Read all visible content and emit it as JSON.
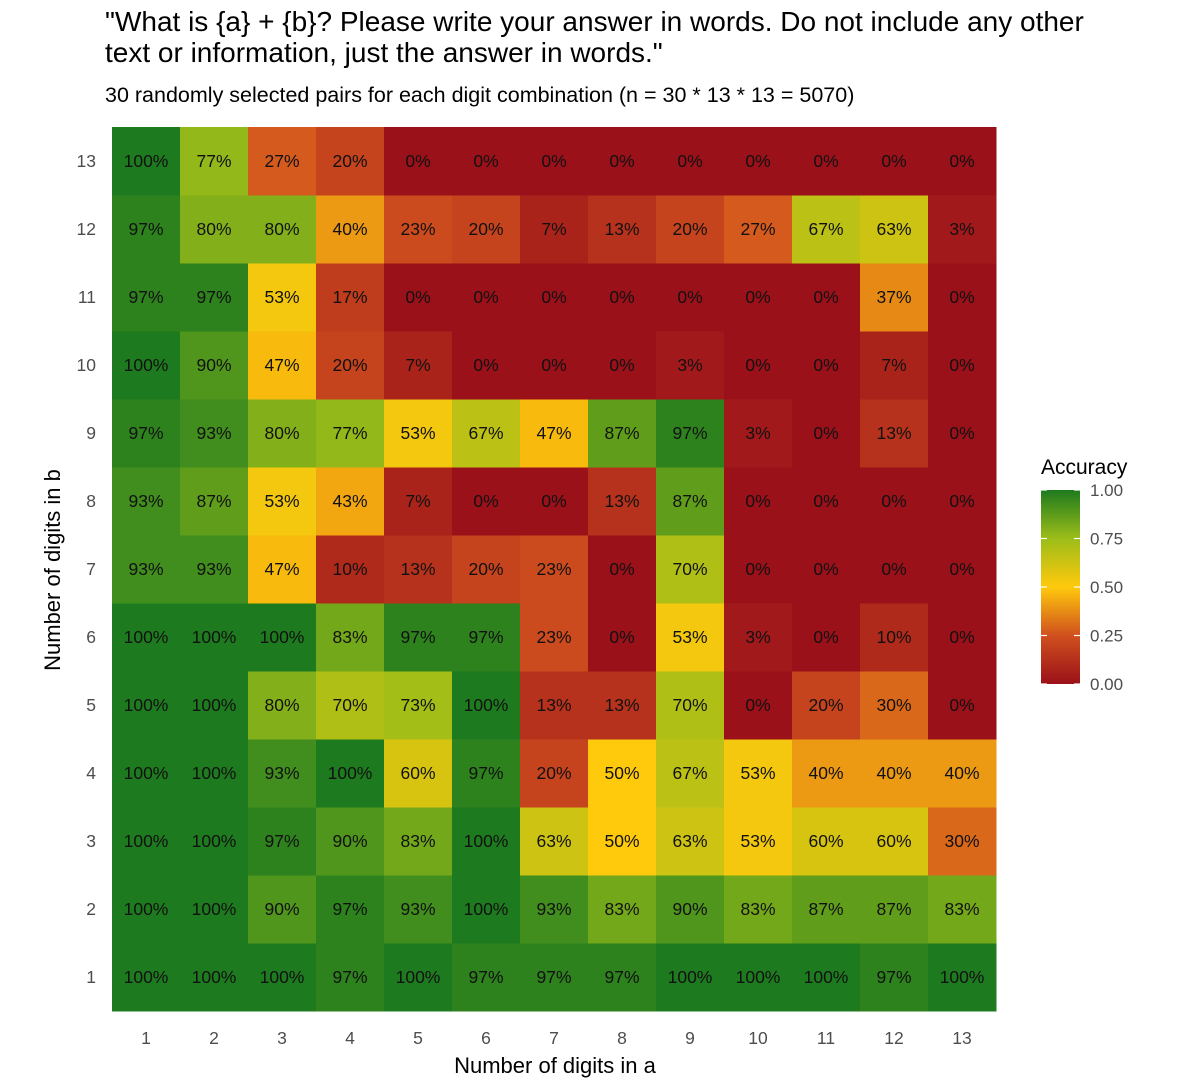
{
  "chart_data": {
    "type": "heatmap",
    "title": "\"What is {a} + {b}? Please write your answer in words. Do not include any other text or information, just the answer in words.\"",
    "subtitle": "30 randomly selected pairs for each digit combination (n = 30 * 13 * 13 = 5070)",
    "xlabel": "Number of digits in a",
    "ylabel": "Number of digits in b",
    "x": [
      1,
      2,
      3,
      4,
      5,
      6,
      7,
      8,
      9,
      10,
      11,
      12,
      13
    ],
    "y": [
      1,
      2,
      3,
      4,
      5,
      6,
      7,
      8,
      9,
      10,
      11,
      12,
      13
    ],
    "value_format": "percent",
    "values_by_b": {
      "13": [
        1.0,
        0.77,
        0.27,
        0.2,
        0.0,
        0.0,
        0.0,
        0.0,
        0.0,
        0.0,
        0.0,
        0.0,
        0.0
      ],
      "12": [
        0.97,
        0.8,
        0.8,
        0.4,
        0.23,
        0.2,
        0.07,
        0.13,
        0.2,
        0.27,
        0.67,
        0.63,
        0.03
      ],
      "11": [
        0.97,
        0.97,
        0.53,
        0.17,
        0.0,
        0.0,
        0.0,
        0.0,
        0.0,
        0.0,
        0.0,
        0.37,
        0.0
      ],
      "10": [
        1.0,
        0.9,
        0.47,
        0.2,
        0.07,
        0.0,
        0.0,
        0.0,
        0.03,
        0.0,
        0.0,
        0.07,
        0.0
      ],
      "9": [
        0.97,
        0.93,
        0.8,
        0.77,
        0.53,
        0.67,
        0.47,
        0.87,
        0.97,
        0.03,
        0.0,
        0.13,
        0.0
      ],
      "8": [
        0.93,
        0.87,
        0.53,
        0.43,
        0.07,
        0.0,
        0.0,
        0.13,
        0.87,
        0.0,
        0.0,
        0.0,
        0.0
      ],
      "7": [
        0.93,
        0.93,
        0.47,
        0.1,
        0.13,
        0.2,
        0.23,
        0.0,
        0.7,
        0.0,
        0.0,
        0.0,
        0.0
      ],
      "6": [
        1.0,
        1.0,
        1.0,
        0.83,
        0.97,
        0.97,
        0.23,
        0.0,
        0.53,
        0.03,
        0.0,
        0.1,
        0.0
      ],
      "5": [
        1.0,
        1.0,
        0.8,
        0.7,
        0.73,
        1.0,
        0.13,
        0.13,
        0.7,
        0.0,
        0.2,
        0.3,
        0.0
      ],
      "4": [
        1.0,
        1.0,
        0.93,
        1.0,
        0.6,
        0.97,
        0.2,
        0.5,
        0.67,
        0.53,
        0.4,
        0.4,
        0.4
      ],
      "3": [
        1.0,
        1.0,
        0.97,
        0.9,
        0.83,
        1.0,
        0.63,
        0.5,
        0.63,
        0.53,
        0.6,
        0.6,
        0.3
      ],
      "2": [
        1.0,
        1.0,
        0.9,
        0.97,
        0.93,
        1.0,
        0.93,
        0.83,
        0.9,
        0.83,
        0.87,
        0.87,
        0.83
      ],
      "1": [
        1.0,
        1.0,
        1.0,
        0.97,
        1.0,
        0.97,
        0.97,
        0.97,
        1.0,
        1.0,
        1.0,
        0.97,
        1.0
      ]
    },
    "legend": {
      "title": "Accuracy",
      "placement": "right",
      "ticks": [
        "1.00",
        "0.75",
        "0.50",
        "0.25",
        "0.00"
      ],
      "range": [
        0,
        1
      ]
    },
    "color_scale": [
      "#9b1119",
      "#ffc90c",
      "#1e7a1e"
    ],
    "grid": false
  }
}
